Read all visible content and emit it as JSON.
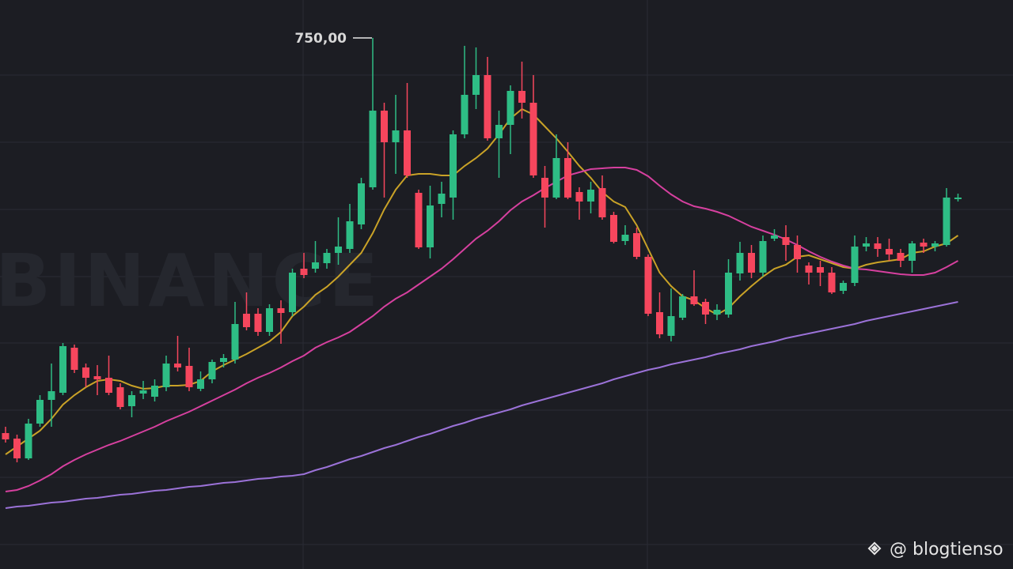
{
  "chart_data": {
    "type": "candlestick",
    "watermark": "BINANCE",
    "credit": "@ blogtienso",
    "ylim": [
      414,
      774
    ],
    "up_color": "#2ebd85",
    "down_color": "#f6465d",
    "annotations": [
      {
        "value": 750,
        "label": "750,00"
      }
    ],
    "open": [
      500,
      496.5,
      484,
      506,
      521,
      525.5,
      554,
      541.5,
      536,
      535,
      529,
      517,
      525,
      523,
      529,
      544,
      542.5,
      528,
      534,
      545,
      546.5,
      575.5,
      575.5,
      564,
      579,
      576.5,
      604,
      604,
      607.5,
      614,
      616.5,
      632,
      655.5,
      704,
      684,
      691.5,
      652,
      617.5,
      645,
      649,
      689,
      714,
      726.5,
      686.5,
      695,
      716.5,
      709,
      661.5,
      649,
      674,
      652.5,
      646.5,
      655,
      638,
      621.5,
      626.5,
      611.5,
      576.5,
      561.5,
      573,
      586.5,
      583,
      575,
      575,
      601,
      614,
      601.5,
      623,
      624,
      619,
      606,
      605,
      601.5,
      590,
      595,
      618,
      620,
      616.5,
      614,
      609,
      620.5,
      618,
      619,
      648
    ],
    "high": [
      504,
      499,
      509,
      524,
      544,
      557,
      556,
      544,
      543,
      549,
      531.5,
      526.5,
      533,
      534,
      549,
      561.5,
      554,
      539,
      546.5,
      550,
      583,
      589,
      579,
      581.5,
      584,
      604,
      614,
      621.5,
      616.5,
      636.5,
      645,
      661.5,
      750,
      709,
      714,
      721.5,
      654,
      656.5,
      659,
      691.5,
      745,
      744,
      738,
      704,
      720,
      735,
      726.5,
      669,
      689,
      684,
      655.5,
      659,
      663,
      640,
      631.5,
      630,
      613,
      589,
      591.5,
      588,
      603,
      585,
      581.5,
      610,
      621,
      619,
      625,
      629,
      631.5,
      625,
      608,
      609,
      605,
      596.5,
      625,
      624,
      624,
      623,
      616.5,
      621.5,
      623,
      621.5,
      655,
      651.5
    ],
    "low": [
      494,
      481.5,
      483,
      504,
      504,
      524,
      538,
      529,
      524,
      524,
      515,
      510,
      521.5,
      520,
      526.5,
      539,
      526.5,
      526.5,
      531.5,
      541.5,
      544,
      565,
      561.5,
      561.5,
      556.5,
      574,
      598,
      601.5,
      604,
      606.5,
      614,
      629,
      654,
      649,
      664,
      661.5,
      616.5,
      610.5,
      636.5,
      635,
      686.5,
      705,
      685,
      661.5,
      676.5,
      699,
      661.5,
      630,
      648,
      648,
      635,
      639,
      635,
      620,
      619,
      610,
      574,
      560,
      558,
      571.5,
      580.5,
      569,
      571.5,
      573,
      596.5,
      598,
      599,
      621.5,
      609,
      601.5,
      594,
      593,
      588,
      588,
      593,
      615,
      611.5,
      609,
      605,
      601.5,
      614,
      615,
      618,
      646.5
    ],
    "close": [
      496,
      484,
      506,
      521,
      526.5,
      555,
      540,
      535,
      534,
      525.5,
      516.5,
      524,
      527,
      530,
      544,
      541.5,
      529,
      534,
      545,
      547.5,
      569,
      567,
      564,
      579,
      576,
      601.5,
      600,
      608,
      614,
      618,
      634,
      658,
      704,
      684,
      691.5,
      663,
      617.5,
      644,
      651.5,
      689,
      714,
      726.5,
      686.5,
      695,
      716.5,
      709,
      663,
      649,
      674,
      649,
      646.5,
      654,
      636.5,
      621,
      625.5,
      611.5,
      575.5,
      562.5,
      574,
      586.5,
      581.5,
      575,
      578,
      601.5,
      614,
      601.5,
      621.5,
      625,
      619,
      610,
      601.5,
      601.5,
      589,
      595,
      618,
      620,
      616.5,
      613,
      609,
      620,
      618,
      620,
      649,
      649
    ],
    "lines": [
      {
        "color": "#c9a227",
        "values": [
          486.5,
          491.5,
          496.5,
          501.5,
          509,
          518,
          524,
          529,
          533,
          534,
          533,
          530,
          528,
          528.5,
          530,
          530,
          530.5,
          533,
          539,
          543,
          546.5,
          550,
          554,
          558,
          564,
          574,
          580,
          587.5,
          592.5,
          599,
          606.5,
          614,
          626.5,
          641.5,
          654,
          663,
          664,
          664,
          663,
          663,
          669,
          674,
          680,
          689,
          699,
          705,
          701.5,
          694,
          686.5,
          678,
          669,
          661.5,
          652.5,
          646.5,
          643,
          631.5,
          616.5,
          601.5,
          593,
          586.5,
          584,
          579,
          575,
          579,
          586.5,
          593,
          599,
          604,
          606.5,
          611.5,
          612.5,
          610,
          607.5,
          605,
          604,
          606.5,
          608,
          609,
          610,
          614,
          615,
          618,
          620,
          625
        ]
      },
      {
        "color": "#d6409f",
        "values": [
          463,
          464,
          466.5,
          470,
          474,
          479,
          483,
          486.5,
          489.5,
          492.5,
          495,
          498,
          501,
          504,
          507.5,
          510.5,
          513.5,
          517,
          520.5,
          524,
          527.5,
          531.5,
          535,
          538,
          541.5,
          545.5,
          549,
          554,
          557.5,
          560.5,
          564,
          569,
          574,
          580,
          585,
          589,
          594,
          599,
          604,
          610,
          616.5,
          623,
          628,
          634,
          641,
          646.5,
          650.5,
          655,
          659,
          663,
          665,
          667,
          667.5,
          668,
          668,
          666.5,
          662.5,
          656.5,
          651,
          646.5,
          643.5,
          642,
          640,
          637.5,
          634,
          630.5,
          628,
          625.5,
          622.5,
          619,
          615,
          611.5,
          608.5,
          606,
          604,
          603.5,
          602.5,
          601.5,
          600.5,
          600,
          600,
          601.5,
          605,
          609
        ]
      },
      {
        "color": "#9b72d8",
        "values": [
          452.5,
          453.5,
          454,
          455,
          456,
          456.5,
          457.5,
          458.5,
          459,
          460,
          461,
          461.5,
          462.5,
          463.5,
          464,
          465,
          466,
          466.5,
          467.5,
          468.5,
          469,
          470,
          471,
          471.5,
          472.5,
          473,
          474,
          476.5,
          478.5,
          481,
          483.5,
          485.5,
          488,
          490.5,
          492.5,
          495,
          497.5,
          499.5,
          502,
          504.5,
          506.5,
          509,
          511,
          513,
          515,
          517.5,
          519.5,
          521.5,
          523.5,
          525.5,
          527.5,
          529.5,
          531.5,
          534,
          536,
          538,
          540,
          541.5,
          543.5,
          545,
          546.5,
          548,
          550,
          551.5,
          553,
          555,
          556.5,
          558,
          560,
          561.5,
          563,
          564.5,
          566,
          567.5,
          569,
          571,
          572.5,
          574,
          575.5,
          577,
          578.5,
          580,
          581.5,
          583
        ]
      }
    ]
  }
}
